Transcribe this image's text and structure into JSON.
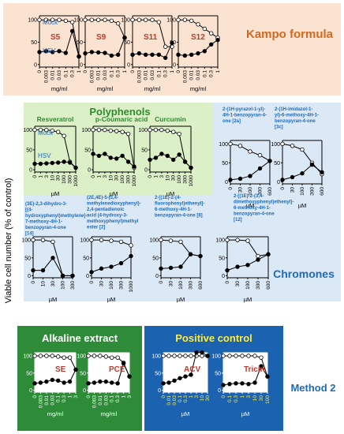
{
  "figure": {
    "y_axis_label": "Viable cell number (% of control)",
    "legend": {
      "mock": "Mock",
      "hsv": "HSV"
    },
    "colors": {
      "kampo_bg": "#fbe3d2",
      "poly_bg": "#dcf0c8",
      "chrom_bg": "#dbe8f5",
      "alk_bg": "#2e8b38",
      "pos_bg": "#1b63b0",
      "kampo_title": "#d2691e",
      "poly_title": "#2e8b2e",
      "chrom_title": "#1e6bb8",
      "panel_label": "#c0392b",
      "pos_label": "#ffeb3b",
      "method": "#1e6bb8",
      "mock_color": "#ffffff",
      "hsv_color": "#000000"
    }
  },
  "sections": {
    "kampo": "Kampo formula",
    "polyphenols": "Polyphenols",
    "chromones": "Chromones",
    "alkaline": "Alkaline extract",
    "positive": "Positive control",
    "method": "Method 2"
  },
  "chart_data": [
    {
      "type": "line",
      "group": "kampo",
      "label": "S5",
      "x": [
        "0",
        "0.003",
        "0.01",
        "0.03",
        "0.1",
        "0.3",
        "1"
      ],
      "xlabel": "mg/ml",
      "ylim": [
        0,
        100
      ],
      "ticks": [
        "0",
        "50",
        "100"
      ],
      "series": [
        {
          "name": "Mock",
          "values": [
            100,
            100,
            100,
            100,
            98,
            95,
            18
          ]
        },
        {
          "name": "HSV",
          "values": [
            28,
            30,
            28,
            30,
            26,
            75,
            18
          ]
        }
      ]
    },
    {
      "type": "line",
      "group": "kampo",
      "label": "S9",
      "x": [
        "0",
        "0.003",
        "0.01",
        "0.03",
        "0.1",
        "0.3",
        "1"
      ],
      "xlabel": "mg/ml",
      "ylim": [
        0,
        100
      ],
      "ticks": [
        "0",
        "50",
        "100"
      ],
      "series": [
        {
          "name": "Mock",
          "values": [
            100,
            100,
            100,
            100,
            98,
            92,
            60
          ]
        },
        {
          "name": "HSV",
          "values": [
            25,
            28,
            27,
            26,
            20,
            22,
            60
          ]
        }
      ]
    },
    {
      "type": "line",
      "group": "kampo",
      "label": "S11",
      "x": [
        "0",
        "0.003",
        "0.01",
        "0.03",
        "0.1",
        "0.3",
        "1"
      ],
      "xlabel": "mg/ml",
      "ylim": [
        0,
        100
      ],
      "ticks": [
        "0",
        "50",
        "100"
      ],
      "series": [
        {
          "name": "Mock",
          "values": [
            100,
            100,
            100,
            100,
            95,
            40,
            40
          ]
        },
        {
          "name": "HSV",
          "values": [
            22,
            25,
            22,
            22,
            22,
            15,
            48
          ]
        }
      ]
    },
    {
      "type": "line",
      "group": "kampo",
      "label": "S12",
      "x": [
        "0",
        "0.003",
        "0.01",
        "0.03",
        "0.1",
        "0.3",
        "1"
      ],
      "xlabel": "mg/ml",
      "ylim": [
        0,
        100
      ],
      "ticks": [
        "0",
        "50",
        "100"
      ],
      "series": [
        {
          "name": "Mock",
          "values": [
            100,
            100,
            98,
            90,
            80,
            70,
            60
          ]
        },
        {
          "name": "HSV",
          "values": [
            22,
            20,
            22,
            25,
            30,
            45,
            55
          ]
        }
      ]
    },
    {
      "type": "line",
      "group": "poly",
      "label": "Resveratrol",
      "x": [
        "0",
        "1",
        "3",
        "10",
        "30",
        "100",
        "300",
        "1000"
      ],
      "xlabel": "µM",
      "ylim": [
        0,
        100
      ],
      "ticks": [
        "0",
        "50",
        "100"
      ],
      "series": [
        {
          "name": "Mock",
          "values": [
            100,
            100,
            100,
            98,
            95,
            85,
            20,
            5
          ]
        },
        {
          "name": "HSV",
          "values": [
            15,
            15,
            16,
            17,
            18,
            20,
            18,
            5
          ]
        }
      ]
    },
    {
      "type": "line",
      "group": "poly",
      "label": "p-Coumaric acid",
      "x": [
        "0",
        "1",
        "3",
        "10",
        "30",
        "100",
        "300",
        "1000"
      ],
      "xlabel": "µM",
      "ylim": [
        0,
        100
      ],
      "ticks": [
        "0",
        "50",
        "100"
      ],
      "series": [
        {
          "name": "Mock",
          "values": [
            100,
            100,
            100,
            98,
            97,
            95,
            90,
            5
          ]
        },
        {
          "name": "HSV",
          "values": [
            40,
            35,
            40,
            30,
            28,
            35,
            20,
            8
          ]
        }
      ]
    },
    {
      "type": "line",
      "group": "poly",
      "label": "Curcumin",
      "x": [
        "0",
        "1",
        "3",
        "10",
        "30",
        "100",
        "300",
        "1000"
      ],
      "xlabel": "µM",
      "ylim": [
        0,
        100
      ],
      "ticks": [
        "0",
        "50",
        "100"
      ],
      "series": [
        {
          "name": "Mock",
          "values": [
            100,
            100,
            100,
            98,
            95,
            90,
            20,
            5
          ]
        },
        {
          "name": "HSV",
          "values": [
            25,
            30,
            40,
            35,
            25,
            38,
            20,
            5
          ]
        }
      ]
    },
    {
      "type": "line",
      "group": "chrom",
      "label": "2-(1H-pyrazol-1-yl)-4H-1-benzopyran-4-one [2a]",
      "x": [
        "0",
        "30",
        "100",
        "300",
        "600"
      ],
      "xlabel": "µM",
      "ylim": [
        0,
        100
      ],
      "ticks": [
        "0",
        "50",
        "100"
      ],
      "series": [
        {
          "name": "Mock",
          "values": [
            100,
            95,
            80,
            70,
            55
          ]
        },
        {
          "name": "HSV",
          "values": [
            5,
            8,
            15,
            35,
            55
          ]
        }
      ]
    },
    {
      "type": "line",
      "group": "chrom",
      "label": "2-(1H-imidazol-1-yl)-6-methoxy-4H-1-benzopyran-4-one [3c]",
      "x": [
        "0",
        "30",
        "100",
        "300",
        "600"
      ],
      "xlabel": "µM",
      "ylim": [
        0,
        100
      ],
      "ticks": [
        "0",
        "50",
        "100"
      ],
      "series": [
        {
          "name": "Mock",
          "values": [
            100,
            95,
            85,
            50,
            20
          ]
        },
        {
          "name": "HSV",
          "values": [
            5,
            12,
            22,
            45,
            25
          ]
        }
      ]
    },
    {
      "type": "line",
      "group": "chrom",
      "label": "(3E)-2,3-dihydro-3-[(4-hydroxyphenyl)methylene]-7-methoxy-4H-1-benzopyran-4-one [14]",
      "x": [
        "0",
        "10",
        "30",
        "100",
        "300"
      ],
      "xlabel": "µM",
      "ylim": [
        0,
        100
      ],
      "ticks": [
        "0",
        "50",
        "100"
      ],
      "series": [
        {
          "name": "Mock",
          "values": [
            100,
            100,
            95,
            0,
            0
          ]
        },
        {
          "name": "HSV",
          "values": [
            15,
            15,
            50,
            0,
            0
          ]
        }
      ]
    },
    {
      "type": "line",
      "group": "chrom",
      "label": "(2E,4E)-5-(3,4-methylenedioxyphenyl)-2,4-pentadienoic acid (4-hydroxy-3-methoxyphenyl)methyl ester [2]",
      "x": [
        "0",
        "30",
        "100",
        "300",
        "1000"
      ],
      "xlabel": "µM",
      "ylim": [
        0,
        100
      ],
      "ticks": [
        "0",
        "50",
        "100"
      ],
      "series": [
        {
          "name": "Mock",
          "values": [
            100,
            100,
            98,
            95,
            85
          ]
        },
        {
          "name": "HSV",
          "values": [
            10,
            20,
            25,
            35,
            55
          ]
        }
      ]
    },
    {
      "type": "line",
      "group": "chrom",
      "label": "2-[(1E)-2-(4-fluorophenyl)ethenyl]-6-methoxy-4H-1-benzopyran-4-one [8]",
      "x": [
        "0",
        "30",
        "100",
        "300",
        "600"
      ],
      "xlabel": "µM",
      "ylim": [
        0,
        100
      ],
      "ticks": [
        "0",
        "50",
        "100"
      ],
      "series": [
        {
          "name": "Mock",
          "values": [
            100,
            98,
            95,
            60,
            55
          ]
        },
        {
          "name": "HSV",
          "values": [
            20,
            22,
            25,
            60,
            55
          ]
        }
      ]
    },
    {
      "type": "line",
      "group": "chrom",
      "label": "2-[(1E)-2-(3,4-dimethoxyphenyl)ethenyl]-6-methoxy-4H-1-benzopyran-4-one [12]",
      "x": [
        "0",
        "30",
        "100",
        "300",
        "600"
      ],
      "xlabel": "µM",
      "ylim": [
        0,
        100
      ],
      "ticks": [
        "0",
        "50",
        "100"
      ],
      "series": [
        {
          "name": "Mock",
          "values": [
            100,
            100,
            98,
            55,
            60
          ]
        },
        {
          "name": "HSV",
          "values": [
            15,
            25,
            30,
            45,
            60
          ]
        }
      ]
    },
    {
      "type": "line",
      "group": "alk",
      "label": "SE",
      "x": [
        "0",
        "0.003",
        "0.01",
        "0.03",
        "0.1",
        "0.3",
        "1",
        "3"
      ],
      "xlabel": "mg/ml",
      "ylim": [
        0,
        100
      ],
      "ticks": [
        "0",
        "50",
        "100"
      ],
      "series": [
        {
          "name": "Mock",
          "values": [
            100,
            100,
            100,
            100,
            98,
            95,
            95,
            60
          ]
        },
        {
          "name": "HSV",
          "values": [
            20,
            22,
            25,
            30,
            28,
            22,
            25,
            60
          ]
        }
      ]
    },
    {
      "type": "line",
      "group": "alk",
      "label": "PCE",
      "x": [
        "0",
        "0.003",
        "0.01",
        "0.03",
        "0.1",
        "0.3",
        "1",
        "3"
      ],
      "xlabel": "mg/ml",
      "ylim": [
        0,
        100
      ],
      "ticks": [
        "0",
        "50",
        "100"
      ],
      "series": [
        {
          "name": "Mock",
          "values": [
            100,
            100,
            100,
            98,
            95,
            95,
            80,
            40
          ]
        },
        {
          "name": "HSV",
          "values": [
            20,
            22,
            25,
            25,
            22,
            20,
            78,
            40
          ]
        }
      ]
    },
    {
      "type": "line",
      "group": "pos",
      "label": "ACV",
      "x": [
        "0",
        "0.01",
        "0.03",
        "0.1",
        "0.3",
        "1",
        "3",
        "10",
        "30"
      ],
      "xlabel": "µM",
      "ylim": [
        0,
        100
      ],
      "ticks": [
        "0",
        "50",
        "100"
      ],
      "series": [
        {
          "name": "Mock",
          "values": [
            100,
            100,
            100,
            100,
            100,
            100,
            100,
            100,
            100
          ]
        },
        {
          "name": "HSV",
          "values": [
            20,
            22,
            28,
            35,
            40,
            45,
            110,
            110,
            100
          ]
        }
      ]
    },
    {
      "type": "line",
      "group": "pos",
      "label": "Tricin",
      "x": [
        "0",
        "0.1",
        "0.3",
        "1",
        "3",
        "10",
        "30",
        "100"
      ],
      "xlabel": "µM",
      "ylim": [
        0,
        100
      ],
      "ticks": [
        "0",
        "50",
        "100"
      ],
      "series": [
        {
          "name": "Mock",
          "values": [
            100,
            100,
            100,
            100,
            100,
            100,
            95,
            40
          ]
        },
        {
          "name": "HSV",
          "values": [
            15,
            18,
            20,
            20,
            18,
            22,
            70,
            40
          ]
        }
      ]
    }
  ]
}
